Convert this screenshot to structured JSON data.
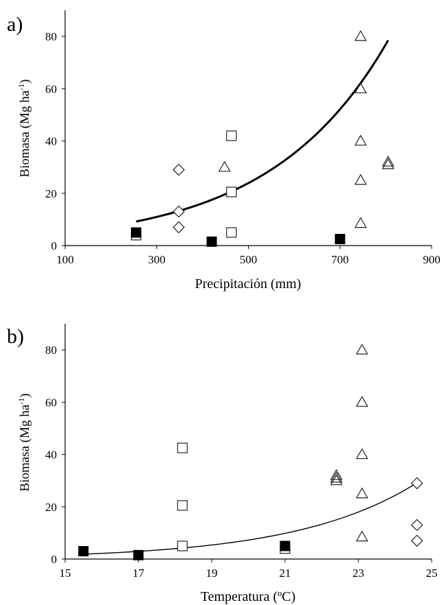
{
  "chart_data": [
    {
      "panel_label": "a)",
      "type": "scatter",
      "xlabel": "Precipitación (mm)",
      "ylabel": "Biomasa (Mg ha",
      "ylabel_sup": "-1",
      "ylabel_close": ")",
      "xlim": [
        100,
        900
      ],
      "ylim": [
        0,
        90
      ],
      "xticks": [
        100,
        300,
        500,
        700,
        900
      ],
      "yticks": [
        0,
        20,
        40,
        60,
        80
      ],
      "grid": false,
      "series": [
        {
          "marker": "triangle",
          "points": [
            [
              745,
              80
            ],
            [
              745,
              60
            ],
            [
              745,
              40
            ],
            [
              745,
              25
            ],
            [
              745,
              8.5
            ],
            [
              448,
              30
            ],
            [
              805,
              32
            ],
            [
              805,
              31
            ]
          ]
        },
        {
          "marker": "square-open",
          "points": [
            [
              463,
              42
            ],
            [
              463,
              20.5
            ],
            [
              463,
              5
            ],
            [
              255,
              4
            ]
          ]
        },
        {
          "marker": "diamond",
          "points": [
            [
              348,
              29
            ],
            [
              348,
              13
            ],
            [
              348,
              7
            ]
          ]
        },
        {
          "marker": "square-filled",
          "points": [
            [
              255,
              5
            ],
            [
              420,
              1.5
            ],
            [
              700,
              2.5
            ]
          ]
        }
      ],
      "trendline": {
        "type": "exponential",
        "x": [
          255,
          805
        ],
        "a": 3.4,
        "b": 0.0039
      }
    },
    {
      "panel_label": "b)",
      "type": "scatter",
      "xlabel": "Temperatura (ºC)",
      "ylabel": "Biomasa (Mg ha",
      "ylabel_sup": "-1",
      "ylabel_close": ")",
      "xlim": [
        15,
        25
      ],
      "ylim": [
        0,
        90
      ],
      "xticks": [
        15,
        17,
        19,
        21,
        23,
        25
      ],
      "yticks": [
        0,
        20,
        40,
        60,
        80
      ],
      "grid": false,
      "series": [
        {
          "marker": "triangle",
          "points": [
            [
              23.1,
              80
            ],
            [
              23.1,
              60
            ],
            [
              23.1,
              40
            ],
            [
              23.1,
              25
            ],
            [
              23.1,
              8.5
            ],
            [
              22.4,
              32
            ],
            [
              22.4,
              31
            ],
            [
              22.4,
              30
            ]
          ]
        },
        {
          "marker": "square-open",
          "points": [
            [
              18.2,
              42.5
            ],
            [
              18.2,
              20.5
            ],
            [
              18.2,
              5
            ],
            [
              21,
              4
            ]
          ]
        },
        {
          "marker": "diamond",
          "points": [
            [
              24.6,
              29
            ],
            [
              24.6,
              13
            ],
            [
              24.6,
              7
            ]
          ]
        },
        {
          "marker": "square-filled",
          "points": [
            [
              15.5,
              3
            ],
            [
              17,
              1.5
            ],
            [
              21,
              5
            ]
          ]
        }
      ],
      "trendline": {
        "type": "exponential",
        "x": [
          15.5,
          24.6
        ],
        "a": 0.0173,
        "b": 0.302
      }
    }
  ]
}
